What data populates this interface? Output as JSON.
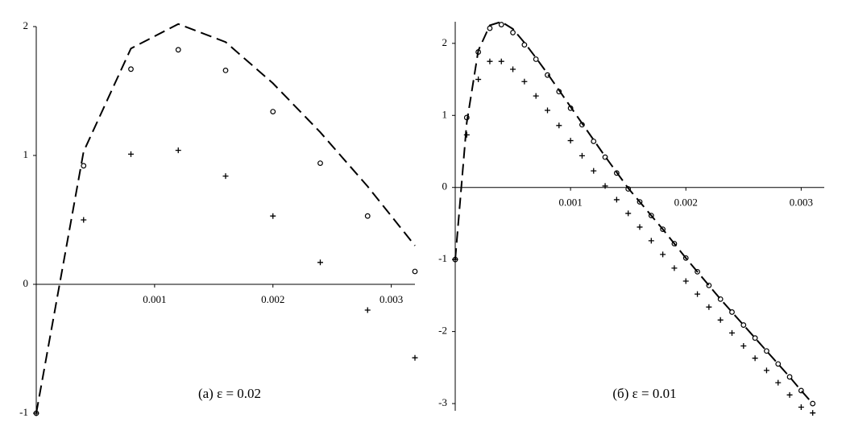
{
  "chart_data": [
    {
      "type": "scatter-line",
      "annotation": "(a) ε = 0.02",
      "x": [
        0,
        0.0004,
        0.0008,
        0.0012,
        0.0016,
        0.002,
        0.0024,
        0.0028,
        0.0032
      ],
      "xlim": [
        0,
        0.0032
      ],
      "ylim": [
        -1,
        2
      ],
      "xticks": [
        0.001,
        0.002,
        0.003
      ],
      "yticks": [
        -1,
        0,
        1,
        2
      ],
      "series": [
        {
          "style": "dash",
          "color": "#000000",
          "values": [
            -1,
            1.03,
            1.83,
            2.02,
            1.88,
            1.56,
            1.18,
            0.76,
            0.3
          ]
        },
        {
          "style": "circle",
          "color": "#000000",
          "values": [
            -1,
            0.92,
            1.67,
            1.82,
            1.66,
            1.34,
            0.94,
            0.53,
            0.1
          ]
        },
        {
          "style": "plus",
          "color": "#000000",
          "values": [
            -1,
            0.5,
            1.01,
            1.04,
            0.84,
            0.53,
            0.17,
            -0.2,
            -0.57
          ]
        }
      ]
    },
    {
      "type": "scatter-line",
      "annotation": "(б) ε = 0.01",
      "x": [
        0,
        0.0001,
        0.0002,
        0.0003,
        0.0004,
        0.0005,
        0.0006,
        0.0007,
        0.0008,
        0.0009,
        0.001,
        0.0011,
        0.0012,
        0.0013,
        0.0014,
        0.0015,
        0.0016,
        0.0017,
        0.0018,
        0.0019,
        0.002,
        0.0021,
        0.0022,
        0.0023,
        0.0024,
        0.0025,
        0.0026,
        0.0027,
        0.0028,
        0.0029,
        0.003,
        0.0031
      ],
      "xlim": [
        0,
        0.0032
      ],
      "ylim": [
        -3.1,
        2.3
      ],
      "xticks": [
        0.001,
        0.002,
        0.003
      ],
      "yticks": [
        -3,
        -2,
        -1,
        0,
        1,
        2
      ],
      "series": [
        {
          "style": "dash",
          "color": "#000000",
          "values": [
            -1,
            0.9,
            1.9,
            2.25,
            2.3,
            2.2,
            2.01,
            1.8,
            1.58,
            1.35,
            1.12,
            0.89,
            0.66,
            0.43,
            0.21,
            -0.01,
            -0.2,
            -0.39,
            -0.58,
            -0.78,
            -0.98,
            -1.17,
            -1.36,
            -1.55,
            -1.73,
            -1.91,
            -2.09,
            -2.27,
            -2.45,
            -2.63,
            -2.82,
            -3.0
          ]
        },
        {
          "style": "circle",
          "color": "#000000",
          "values": [
            -1,
            0.97,
            1.88,
            2.21,
            2.26,
            2.15,
            1.98,
            1.78,
            1.56,
            1.33,
            1.1,
            0.87,
            0.64,
            0.42,
            0.2,
            -0.02,
            -0.2,
            -0.39,
            -0.58,
            -0.78,
            -0.98,
            -1.17,
            -1.36,
            -1.55,
            -1.73,
            -1.91,
            -2.09,
            -2.27,
            -2.45,
            -2.63,
            -2.82,
            -3.0
          ]
        },
        {
          "style": "plus",
          "color": "#000000",
          "values": [
            -1,
            0.73,
            1.5,
            1.75,
            1.75,
            1.64,
            1.47,
            1.27,
            1.07,
            0.86,
            0.65,
            0.44,
            0.23,
            0.02,
            -0.17,
            -0.36,
            -0.55,
            -0.74,
            -0.93,
            -1.12,
            -1.3,
            -1.48,
            -1.66,
            -1.84,
            -2.02,
            -2.2,
            -2.37,
            -2.54,
            -2.71,
            -2.88,
            -3.05,
            -3.13
          ]
        }
      ]
    }
  ]
}
